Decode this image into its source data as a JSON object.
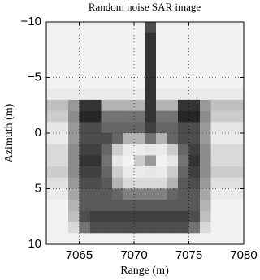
{
  "chart_data": {
    "type": "heatmap",
    "title": "Random noise SAR image",
    "xlabel": "Range (m)",
    "ylabel": "Azimuth (m)",
    "xlim": [
      7062,
      7080
    ],
    "xticks": [
      7065,
      7070,
      7075,
      7080
    ],
    "ylim": [
      -10,
      10
    ],
    "yticks": [
      {
        "value": -10,
        "label": "−10"
      },
      {
        "value": -5,
        "label": "−5"
      },
      0,
      5,
      10
    ],
    "y_reversed": true,
    "grid": true,
    "colorscale": [
      "#ffffff",
      "#000000"
    ],
    "x": [
      7062.5,
      7063.5,
      7064.5,
      7065.5,
      7066.5,
      7067.5,
      7068.5,
      7069.5,
      7070.5,
      7071.5,
      7072.5,
      7073.5,
      7074.5,
      7075.5,
      7076.5,
      7077.5,
      7078.5,
      7079.5
    ],
    "y": [
      -9.5,
      -8.5,
      -7.5,
      -6.5,
      -5.5,
      -4.5,
      -3.5,
      -2.5,
      -1.5,
      -0.5,
      0.5,
      1.5,
      2.5,
      3.5,
      4.5,
      5.5,
      6.5,
      7.5,
      8.5,
      9.5
    ],
    "z": [
      [
        0.05,
        0.05,
        0.05,
        0.05,
        0.05,
        0.05,
        0.05,
        0.05,
        0.05,
        0.7,
        0.05,
        0.05,
        0.05,
        0.05,
        0.05,
        0.05,
        0.05,
        0.05
      ],
      [
        0.05,
        0.05,
        0.05,
        0.05,
        0.05,
        0.05,
        0.05,
        0.05,
        0.05,
        0.8,
        0.05,
        0.05,
        0.05,
        0.05,
        0.05,
        0.05,
        0.05,
        0.05
      ],
      [
        0.05,
        0.05,
        0.05,
        0.05,
        0.05,
        0.05,
        0.05,
        0.05,
        0.05,
        0.8,
        0.05,
        0.05,
        0.05,
        0.05,
        0.05,
        0.05,
        0.05,
        0.05
      ],
      [
        0.05,
        0.05,
        0.05,
        0.05,
        0.05,
        0.05,
        0.05,
        0.05,
        0.05,
        0.8,
        0.05,
        0.05,
        0.05,
        0.05,
        0.05,
        0.05,
        0.05,
        0.05
      ],
      [
        0.05,
        0.05,
        0.05,
        0.05,
        0.05,
        0.05,
        0.05,
        0.05,
        0.05,
        0.8,
        0.05,
        0.05,
        0.05,
        0.05,
        0.05,
        0.05,
        0.05,
        0.05
      ],
      [
        0.05,
        0.05,
        0.05,
        0.05,
        0.05,
        0.05,
        0.05,
        0.05,
        0.05,
        0.8,
        0.05,
        0.05,
        0.05,
        0.05,
        0.05,
        0.05,
        0.05,
        0.05
      ],
      [
        0.08,
        0.08,
        0.08,
        0.08,
        0.08,
        0.08,
        0.08,
        0.08,
        0.08,
        0.8,
        0.08,
        0.08,
        0.08,
        0.08,
        0.08,
        0.08,
        0.08,
        0.08
      ],
      [
        0.25,
        0.25,
        0.4,
        0.8,
        0.8,
        0.3,
        0.3,
        0.3,
        0.3,
        0.8,
        0.3,
        0.3,
        0.8,
        0.8,
        0.4,
        0.25,
        0.25,
        0.25
      ],
      [
        0.2,
        0.2,
        0.45,
        0.85,
        0.85,
        0.55,
        0.55,
        0.55,
        0.55,
        0.8,
        0.55,
        0.55,
        0.85,
        0.85,
        0.45,
        0.2,
        0.2,
        0.2
      ],
      [
        0.1,
        0.1,
        0.4,
        0.7,
        0.7,
        0.6,
        0.6,
        0.6,
        0.6,
        0.75,
        0.6,
        0.6,
        0.7,
        0.7,
        0.4,
        0.1,
        0.1,
        0.1
      ],
      [
        0.08,
        0.08,
        0.4,
        0.7,
        0.7,
        0.7,
        0.6,
        0.3,
        0.3,
        0.55,
        0.3,
        0.6,
        0.7,
        0.7,
        0.4,
        0.08,
        0.08,
        0.08
      ],
      [
        0.15,
        0.15,
        0.45,
        0.75,
        0.75,
        0.6,
        0.2,
        0.08,
        0.08,
        0.1,
        0.08,
        0.2,
        0.6,
        0.75,
        0.45,
        0.15,
        0.15,
        0.15
      ],
      [
        0.15,
        0.15,
        0.45,
        0.8,
        0.8,
        0.55,
        0.1,
        0.05,
        0.2,
        0.4,
        0.05,
        0.1,
        0.55,
        0.8,
        0.45,
        0.15,
        0.15,
        0.15
      ],
      [
        0.2,
        0.2,
        0.45,
        0.75,
        0.75,
        0.6,
        0.2,
        0.08,
        0.08,
        0.1,
        0.08,
        0.2,
        0.6,
        0.75,
        0.45,
        0.2,
        0.2,
        0.2
      ],
      [
        0.12,
        0.12,
        0.4,
        0.7,
        0.7,
        0.65,
        0.3,
        0.15,
        0.15,
        0.15,
        0.15,
        0.3,
        0.65,
        0.7,
        0.4,
        0.12,
        0.12,
        0.12
      ],
      [
        0.08,
        0.08,
        0.35,
        0.65,
        0.65,
        0.65,
        0.6,
        0.5,
        0.5,
        0.5,
        0.5,
        0.6,
        0.65,
        0.65,
        0.35,
        0.08,
        0.08,
        0.08
      ],
      [
        0.05,
        0.05,
        0.3,
        0.65,
        0.65,
        0.65,
        0.65,
        0.65,
        0.65,
        0.65,
        0.65,
        0.65,
        0.65,
        0.65,
        0.3,
        0.05,
        0.05,
        0.05
      ],
      [
        0.05,
        0.05,
        0.25,
        0.7,
        0.75,
        0.75,
        0.75,
        0.75,
        0.75,
        0.75,
        0.75,
        0.75,
        0.75,
        0.7,
        0.25,
        0.05,
        0.05,
        0.05
      ],
      [
        0.05,
        0.05,
        0.15,
        0.55,
        0.7,
        0.7,
        0.7,
        0.7,
        0.7,
        0.7,
        0.7,
        0.7,
        0.7,
        0.55,
        0.15,
        0.05,
        0.05,
        0.05
      ],
      [
        0.05,
        0.05,
        0.05,
        0.05,
        0.05,
        0.05,
        0.05,
        0.05,
        0.05,
        0.05,
        0.05,
        0.05,
        0.05,
        0.05,
        0.05,
        0.05,
        0.05,
        0.05
      ]
    ]
  }
}
